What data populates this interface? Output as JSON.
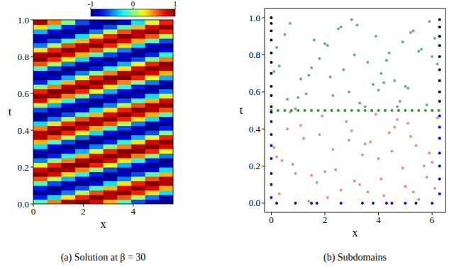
{
  "chart_data": [
    {
      "type": "heatmap",
      "title": "(a) Solution at β = 30",
      "x_label": "x",
      "y_label": "t",
      "x": [
        0.28,
        0.84,
        1.4,
        1.96,
        2.52,
        3.08,
        3.64,
        4.2,
        4.76,
        5.32
      ],
      "y": [
        0.0125,
        0.0375,
        0.0625,
        0.0875,
        0.1125,
        0.1375,
        0.1625,
        0.1875,
        0.2125,
        0.2375,
        0.2625,
        0.2875,
        0.3125,
        0.3375,
        0.3625,
        0.3875,
        0.4125,
        0.4375,
        0.4625,
        0.4875,
        0.5125,
        0.5375,
        0.5625,
        0.5875,
        0.6125,
        0.6375,
        0.6625,
        0.6875,
        0.7125,
        0.7375,
        0.7625,
        0.7875,
        0.8125,
        0.8375,
        0.8625,
        0.8875,
        0.9125,
        0.9375,
        0.9625,
        0.9875
      ],
      "values": [
        [
          -0.1,
          0.5,
          0.9,
          1,
          0.8,
          0.4,
          -0.1,
          -0.6,
          -0.9,
          -1
        ],
        [
          -0.7,
          -0.3,
          0.3,
          0.7,
          1,
          0.9,
          0.6,
          0.1,
          -0.5,
          -0.9
        ],
        [
          -1,
          -0.9,
          -0.5,
          0.1,
          0.6,
          0.9,
          1,
          0.7,
          0.3,
          -0.3
        ],
        [
          -0.7,
          -1,
          -0.9,
          -0.6,
          -0.1,
          0.4,
          0.8,
          1,
          0.8,
          0.4
        ],
        [
          -0.1,
          -0.6,
          -0.9,
          -1,
          -0.8,
          -0.3,
          0.3,
          0.7,
          1,
          0.9
        ],
        [
          0.6,
          0.1,
          -0.4,
          -0.8,
          -1,
          -0.9,
          -0.5,
          0.1,
          0.6,
          0.9
        ],
        [
          1,
          0.8,
          0.3,
          -0.2,
          -0.7,
          -1,
          -0.9,
          -0.6,
          -0.1,
          0.4
        ],
        [
          0.8,
          1,
          0.9,
          0.5,
          0,
          -0.6,
          -0.9,
          -1,
          -0.8,
          -0.3
        ],
        [
          0.2,
          0.7,
          1,
          1,
          0.7,
          0.2,
          -0.4,
          -0.8,
          -1,
          -0.9
        ],
        [
          -0.5,
          0,
          0.5,
          0.9,
          1,
          0.8,
          0.3,
          -0.2,
          -0.7,
          -1
        ],
        [
          -1,
          -0.7,
          -0.2,
          0.4,
          0.8,
          1,
          0.9,
          0.5,
          0,
          -0.5
        ],
        [
          -0.9,
          -1,
          -0.8,
          -0.4,
          0.2,
          0.7,
          1,
          1,
          0.7,
          0.2
        ],
        [
          -0.3,
          -0.8,
          -1,
          -0.9,
          -0.5,
          0,
          0.5,
          0.9,
          1,
          0.8
        ],
        [
          0.4,
          -0.1,
          -0.6,
          -1,
          -1,
          -0.7,
          -0.2,
          0.3,
          0.8,
          1
        ],
        [
          0.9,
          0.6,
          0.1,
          -0.5,
          -0.9,
          -1,
          -0.8,
          -0.4,
          0.2,
          0.7
        ],
        [
          0.9,
          1,
          0.7,
          0.2,
          -0.3,
          -0.8,
          -1,
          -0.9,
          -0.6,
          0
        ],
        [
          0.5,
          0.9,
          1,
          0.8,
          0.4,
          -0.1,
          -0.6,
          -0.9,
          -1,
          -0.7
        ],
        [
          -0.3,
          0.3,
          0.7,
          1,
          0.9,
          0.6,
          0.1,
          -0.5,
          -0.9,
          -1
        ],
        [
          -0.9,
          -0.5,
          0.1,
          0.6,
          0.9,
          1,
          0.7,
          0.3,
          -0.3,
          -0.8
        ],
        [
          -1,
          -0.9,
          -0.6,
          -0.1,
          0.4,
          0.8,
          1,
          0.8,
          0.4,
          -0.1
        ],
        [
          -0.6,
          -0.9,
          -1,
          -0.8,
          -0.3,
          0.3,
          0.7,
          1,
          0.9,
          0.6
        ],
        [
          0.1,
          -0.4,
          -0.8,
          -1,
          -0.9,
          -0.5,
          0.1,
          0.6,
          0.9,
          1
        ],
        [
          0.8,
          0.3,
          -0.2,
          -0.7,
          -1,
          -0.9,
          -0.6,
          -0.1,
          0.4,
          0.8
        ],
        [
          1,
          0.9,
          0.5,
          0,
          -0.6,
          -0.9,
          -1,
          -0.8,
          -0.3,
          0.2
        ],
        [
          0.7,
          1,
          1,
          0.7,
          0.2,
          -0.4,
          -0.8,
          -1,
          -0.9,
          -0.5
        ],
        [
          0,
          0.5,
          0.9,
          1,
          0.8,
          0.3,
          -0.2,
          -0.7,
          -1,
          -1
        ],
        [
          -0.7,
          -0.2,
          0.4,
          0.8,
          1,
          0.9,
          0.5,
          0,
          -0.5,
          -0.9
        ],
        [
          -1,
          -0.8,
          -0.4,
          0.2,
          0.7,
          1,
          1,
          0.7,
          0.2,
          -0.4
        ],
        [
          -0.8,
          -1,
          -0.9,
          -0.5,
          0,
          0.5,
          0.9,
          1,
          0.8,
          0.4
        ],
        [
          -0.1,
          -0.6,
          -1,
          -1,
          -0.7,
          -0.2,
          0.3,
          0.8,
          1,
          0.9
        ],
        [
          0.6,
          0.1,
          -0.5,
          -0.9,
          -1,
          -0.8,
          -0.4,
          0.2,
          0.7,
          1
        ],
        [
          1,
          0.7,
          0.2,
          -0.3,
          -0.8,
          -1,
          -0.9,
          -0.6,
          0,
          0.5
        ],
        [
          0.9,
          1,
          0.8,
          0.4,
          -0.1,
          -0.6,
          -0.9,
          -1,
          -0.7,
          -0.2
        ],
        [
          0.3,
          0.7,
          1,
          0.9,
          0.6,
          0.1,
          -0.5,
          -0.9,
          -1,
          -0.8
        ],
        [
          -0.5,
          0.1,
          0.6,
          0.9,
          1,
          0.7,
          0.3,
          -0.3,
          -0.8,
          -1
        ],
        [
          -0.9,
          -0.6,
          -0.1,
          0.4,
          0.8,
          1,
          0.8,
          0.4,
          -0.1,
          -0.6
        ],
        [
          -0.9,
          -1,
          -0.8,
          -0.3,
          0.3,
          0.7,
          1,
          0.9,
          0.6,
          0.1
        ],
        [
          -0.4,
          -0.8,
          -1,
          -0.9,
          -0.5,
          0.1,
          0.6,
          0.9,
          1,
          0.7
        ],
        [
          0.3,
          -0.2,
          -0.7,
          -1,
          -0.9,
          -0.6,
          -0.1,
          0.4,
          0.8,
          1
        ],
        [
          0.9,
          0.5,
          0,
          -0.6,
          -0.9,
          -1,
          -0.8,
          -0.3,
          0.2,
          0.7
        ]
      ],
      "xlim": [
        0,
        5.6
      ],
      "xticks": [
        0,
        2,
        4
      ],
      "ylim": [
        0,
        1
      ],
      "yticks": [
        {
          "value": 0,
          "label": "0.0"
        },
        {
          "value": 0.2,
          "label": "0.2"
        },
        {
          "value": 0.4,
          "label": "0.4"
        },
        {
          "value": 0.6,
          "label": "0.6"
        },
        {
          "value": 0.8,
          "label": "0.8"
        },
        {
          "value": 1,
          "label": "1.0"
        }
      ],
      "colorbar": {
        "range": [
          -1,
          1
        ],
        "ticks": [
          -1,
          0,
          1
        ]
      }
    },
    {
      "type": "scatter",
      "title": "(b) Subdomains",
      "x_label": "x",
      "y_label": "t",
      "xlim": [
        -0.25,
        6.5
      ],
      "xticks": [
        0,
        2,
        4,
        6
      ],
      "ylim": [
        -0.05,
        1.05
      ],
      "yticks": [
        {
          "value": 0,
          "label": "0.0"
        },
        {
          "value": 0.2,
          "label": "0.2"
        },
        {
          "value": 0.4,
          "label": "0.4"
        },
        {
          "value": 0.6,
          "label": "0.6"
        },
        {
          "value": 0.8,
          "label": "0.8"
        },
        {
          "value": 1,
          "label": "1.0"
        }
      ],
      "series": [
        {
          "color": "#f0907c",
          "marker": "circle",
          "x": [
            0.3,
            1.1,
            2.4,
            3.7,
            5.0,
            5.9,
            0.8,
            1.9,
            3.1,
            4.4,
            5.5,
            0.1,
            1.5,
            2.8,
            4.0,
            5.2,
            6.1,
            0.6,
            2.1,
            3.4,
            4.7,
            5.8,
            1.2,
            2.6,
            3.9,
            4.9,
            0.4,
            1.7,
            3.0,
            4.2,
            5.4,
            6.2,
            0.9,
            2.3,
            3.6,
            4.6,
            5.7,
            1.4,
            2.9,
            4.1,
            5.1,
            0.2,
            1.8,
            3.3,
            4.5,
            6.0,
            0.7,
            2.0,
            3.5,
            5.3
          ],
          "values": [
            0.05,
            0.42,
            0.18,
            0.33,
            0.09,
            0.27,
            0.21,
            0.47,
            0.12,
            0.38,
            0.02,
            0.3,
            0.15,
            0.44,
            0.24,
            0.36,
            0.08,
            0.4,
            0.03,
            0.26,
            0.45,
            0.14,
            0.35,
            0.07,
            0.48,
            0.19,
            0.23,
            0.11,
            0.39,
            0.04,
            0.31,
            0.46,
            0.16,
            0.29,
            0.06,
            0.41,
            0.2,
            0.01,
            0.34,
            0.13,
            0.43,
            0.25,
            0.37,
            0.1,
            0.28,
            0.22,
            0.49,
            0.17,
            0.32,
            0.06
          ]
        },
        {
          "color": "#6aa9a9",
          "marker": "circle",
          "x": [
            5.8,
            0.5,
            2.2,
            4.3,
            1.3,
            3.2,
            5.1,
            0.2,
            2.7,
            4.8,
            1.6,
            3.8,
            6.0,
            0.9,
            2.5,
            4.1,
            5.6,
            1.0,
            3.0,
            4.6,
            0.3,
            2.0,
            3.5,
            5.3,
            1.4,
            2.9,
            4.4,
            6.2,
            0.7,
            2.3,
            3.9,
            5.0,
            1.8,
            3.3,
            4.9,
            0.1,
            2.6,
            4.0,
            5.5,
            1.1,
            3.6,
            5.9,
            0.6,
            2.1,
            4.2,
            5.2,
            1.5,
            3.1,
            4.7,
            6.1
          ],
          "values": [
            0.53,
            0.91,
            0.68,
            0.77,
            0.59,
            0.96,
            0.62,
            0.84,
            0.72,
            0.55,
            0.88,
            0.64,
            0.79,
            0.51,
            0.94,
            0.7,
            0.83,
            0.57,
            0.99,
            0.66,
            0.74,
            0.86,
            0.52,
            0.93,
            0.69,
            0.6,
            0.81,
            0.75,
            0.97,
            0.58,
            0.9,
            0.63,
            0.78,
            0.54,
            0.87,
            0.71,
            0.95,
            0.61,
            0.82,
            0.67,
            0.76,
            0.98,
            0.56,
            0.85,
            0.65,
            0.92,
            0.73,
            0.8,
            0.52,
            0.89
          ]
        },
        {
          "color": "#2ca02c",
          "marker": "circle",
          "x": [
            0,
            0.25,
            0.5,
            0.75,
            1,
            1.25,
            1.5,
            1.75,
            2,
            2.25,
            2.5,
            2.75,
            3,
            3.25,
            3.5,
            3.75,
            4,
            4.25,
            4.5,
            4.75,
            5,
            5.25,
            5.5,
            5.75,
            6,
            6.25
          ],
          "values": [
            0.5,
            0.5,
            0.5,
            0.5,
            0.5,
            0.5,
            0.5,
            0.5,
            0.5,
            0.5,
            0.5,
            0.5,
            0.5,
            0.5,
            0.5,
            0.5,
            0.5,
            0.5,
            0.5,
            0.5,
            0.5,
            0.5,
            0.5,
            0.5,
            0.5,
            0.5
          ]
        },
        {
          "color": "#0000ff",
          "marker": "circle",
          "x": [
            0,
            0,
            0,
            0,
            0,
            0,
            0,
            0,
            6.28,
            6.28,
            6.28,
            6.28,
            6.28,
            6.28,
            6.28,
            0.2,
            0.9,
            1.5,
            1.7,
            2.6,
            3.4,
            3.8,
            4.3,
            4.5,
            5.0,
            5.4,
            6.0
          ],
          "values": [
            0.03,
            0.1,
            0.16,
            0.24,
            0.31,
            0.37,
            0.44,
            0.49,
            0.05,
            0.13,
            0.2,
            0.27,
            0.35,
            0.41,
            0.47,
            0,
            0,
            0,
            0,
            0,
            0,
            0,
            0,
            0,
            0,
            0,
            0
          ]
        },
        {
          "color": "#000000",
          "marker": "circle",
          "x": [
            0,
            0,
            0,
            0,
            0,
            0,
            0,
            0,
            0,
            0,
            6.28,
            6.28,
            6.28,
            6.28,
            6.28,
            6.28,
            6.28,
            6.28,
            6.28
          ],
          "values": [
            0.52,
            0.58,
            0.63,
            0.7,
            0.76,
            0.81,
            0.88,
            0.93,
            0.97,
            1,
            0.55,
            0.6,
            0.66,
            0.72,
            0.79,
            0.85,
            0.9,
            0.95,
            0.99
          ]
        }
      ]
    }
  ]
}
